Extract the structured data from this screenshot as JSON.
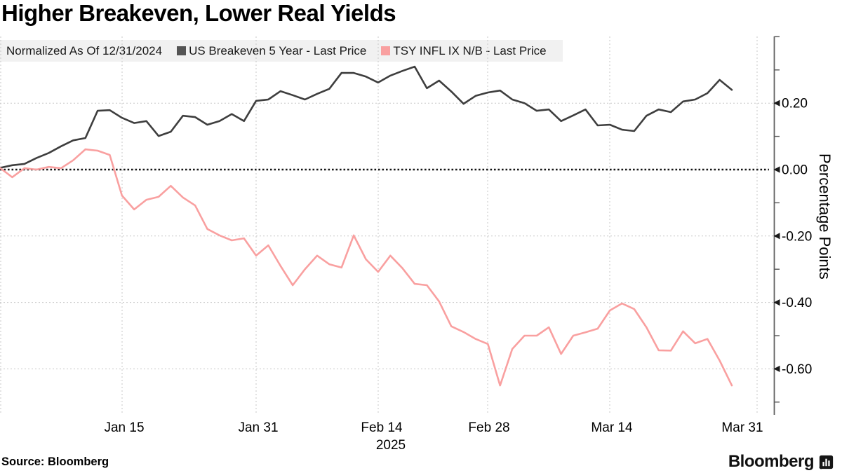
{
  "title": "Higher Breakeven, Lower Real Yields",
  "legend": {
    "note": "Normalized As Of 12/31/2024",
    "series": [
      {
        "label": "US Breakeven 5 Year - Last Price",
        "color": "#545454"
      },
      {
        "label": "TSY INFL IX N/B - Last Price",
        "color": "#f9a0a0"
      }
    ]
  },
  "source": "Source: Bloomberg",
  "brand": "Bloomberg",
  "chart_data": {
    "type": "line",
    "title": "Higher Breakeven, Lower Real Yields",
    "xlabel": "",
    "ylabel": "Percentage Points",
    "x_axis": {
      "start": "2024-12-31",
      "end": "2025-03-31",
      "tick_labels": [
        "Jan 15",
        "Jan 31",
        "Feb 14",
        "Feb 28",
        "Mar 14",
        "Mar 31"
      ],
      "year_label": "2025",
      "grid": "dashed"
    },
    "y_axis": {
      "label": "Percentage Points",
      "side": "right",
      "major_ticks": [
        {
          "value": 0.2,
          "label": "0.20"
        },
        {
          "value": 0.0,
          "label": "0.00"
        },
        {
          "value": -0.2,
          "label": "-0.20"
        },
        {
          "value": -0.4,
          "label": "-0.40"
        },
        {
          "value": -0.6,
          "label": "-0.60"
        }
      ],
      "minor_ticks": [
        0.4,
        0.3,
        0.1,
        -0.1,
        -0.3,
        -0.5,
        -0.7
      ],
      "range": [
        -0.73,
        0.4
      ],
      "zero_line": "dotted-black"
    },
    "dates": [
      "2024-12-31",
      "2025-01-02",
      "2025-01-03",
      "2025-01-06",
      "2025-01-07",
      "2025-01-08",
      "2025-01-09",
      "2025-01-10",
      "2025-01-13",
      "2025-01-14",
      "2025-01-15",
      "2025-01-16",
      "2025-01-17",
      "2025-01-21",
      "2025-01-22",
      "2025-01-23",
      "2025-01-24",
      "2025-01-27",
      "2025-01-28",
      "2025-01-29",
      "2025-01-30",
      "2025-01-31",
      "2025-02-03",
      "2025-02-04",
      "2025-02-05",
      "2025-02-06",
      "2025-02-07",
      "2025-02-10",
      "2025-02-11",
      "2025-02-12",
      "2025-02-13",
      "2025-02-14",
      "2025-02-18",
      "2025-02-19",
      "2025-02-20",
      "2025-02-21",
      "2025-02-24",
      "2025-02-25",
      "2025-02-26",
      "2025-02-27",
      "2025-02-28",
      "2025-03-03",
      "2025-03-04",
      "2025-03-05",
      "2025-03-06",
      "2025-03-07",
      "2025-03-10",
      "2025-03-11",
      "2025-03-12",
      "2025-03-13",
      "2025-03-14",
      "2025-03-17",
      "2025-03-18",
      "2025-03-19",
      "2025-03-20",
      "2025-03-21",
      "2025-03-24",
      "2025-03-25",
      "2025-03-26",
      "2025-03-27",
      "2025-03-28"
    ],
    "series": [
      {
        "name": "US Breakeven 5 Year - Last Price",
        "color": "#3e3e3e",
        "values": [
          0.005,
          0.013,
          0.017,
          0.035,
          0.05,
          0.07,
          0.088,
          0.095,
          0.177,
          0.179,
          0.156,
          0.14,
          0.146,
          0.101,
          0.114,
          0.162,
          0.158,
          0.135,
          0.146,
          0.167,
          0.146,
          0.207,
          0.211,
          0.236,
          0.224,
          0.211,
          0.228,
          0.243,
          0.291,
          0.291,
          0.28,
          0.262,
          0.283,
          0.297,
          0.31,
          0.245,
          0.268,
          0.235,
          0.198,
          0.222,
          0.232,
          0.238,
          0.211,
          0.2,
          0.177,
          0.181,
          0.146,
          0.163,
          0.181,
          0.133,
          0.135,
          0.12,
          0.116,
          0.162,
          0.181,
          0.173,
          0.205,
          0.211,
          0.23,
          0.27,
          0.24
        ]
      },
      {
        "name": "TSY INFL IX N/B - Last Price",
        "color": "#f9a0a0",
        "values": [
          0.005,
          -0.023,
          0.004,
          0.0,
          0.008,
          0.004,
          0.028,
          0.061,
          0.057,
          0.044,
          -0.078,
          -0.12,
          -0.091,
          -0.082,
          -0.049,
          -0.084,
          -0.108,
          -0.179,
          -0.198,
          -0.213,
          -0.207,
          -0.259,
          -0.228,
          -0.29,
          -0.348,
          -0.3,
          -0.259,
          -0.285,
          -0.295,
          -0.198,
          -0.27,
          -0.308,
          -0.259,
          -0.297,
          -0.344,
          -0.348,
          -0.397,
          -0.472,
          -0.489,
          -0.51,
          -0.525,
          -0.65,
          -0.54,
          -0.5,
          -0.5,
          -0.475,
          -0.555,
          -0.5,
          -0.49,
          -0.479,
          -0.424,
          -0.403,
          -0.42,
          -0.475,
          -0.544,
          -0.545,
          -0.487,
          -0.523,
          -0.51,
          -0.575,
          -0.65
        ]
      }
    ]
  }
}
